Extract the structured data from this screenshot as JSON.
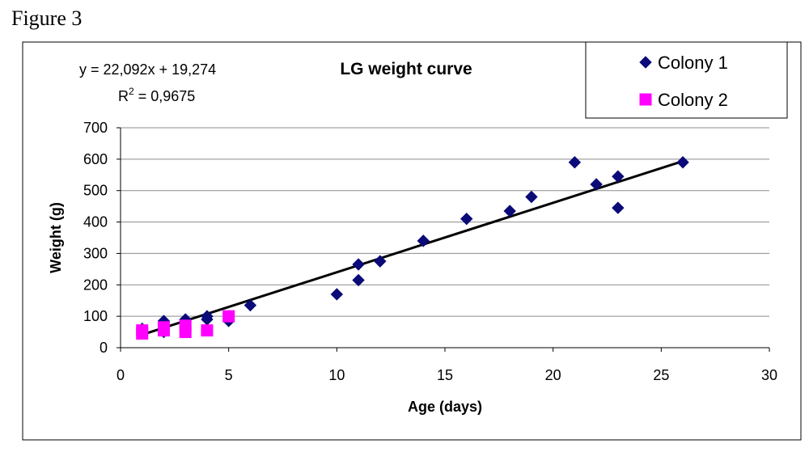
{
  "figure_label": "Figure 3",
  "chart_data": {
    "type": "scatter",
    "title": "LG weight curve",
    "xlabel": "Age (days)",
    "ylabel": "Weight (g)",
    "xlim": [
      0,
      30
    ],
    "ylim": [
      0,
      700
    ],
    "x_ticks": [
      0,
      5,
      10,
      15,
      20,
      25,
      30
    ],
    "y_ticks": [
      0,
      100,
      200,
      300,
      400,
      500,
      600,
      700
    ],
    "grid": "horizontal",
    "legend_position": "top-right",
    "series": [
      {
        "name": "Colony 1",
        "marker": "diamond",
        "color": "#0a0a78",
        "points": [
          [
            1,
            60
          ],
          [
            2,
            85
          ],
          [
            2,
            50
          ],
          [
            3,
            90
          ],
          [
            4,
            100
          ],
          [
            4,
            90
          ],
          [
            5,
            85
          ],
          [
            6,
            135
          ],
          [
            10,
            170
          ],
          [
            11,
            265
          ],
          [
            11,
            215
          ],
          [
            12,
            275
          ],
          [
            14,
            340
          ],
          [
            16,
            410
          ],
          [
            18,
            435
          ],
          [
            19,
            480
          ],
          [
            21,
            590
          ],
          [
            22,
            520
          ],
          [
            23,
            545
          ],
          [
            23,
            445
          ],
          [
            26,
            590
          ]
        ]
      },
      {
        "name": "Colony 2",
        "marker": "square",
        "color": "#ff00ff",
        "points": [
          [
            1,
            55
          ],
          [
            1,
            45
          ],
          [
            2,
            65
          ],
          [
            2,
            55
          ],
          [
            3,
            70
          ],
          [
            3,
            50
          ],
          [
            4,
            55
          ],
          [
            5,
            100
          ]
        ]
      }
    ],
    "trendline": {
      "color": "#000000",
      "slope": 22.092,
      "intercept": 19.274,
      "x_range": [
        1,
        26
      ],
      "equation": "y = 22,092x + 19,274",
      "r2_label": "R",
      "r2_exponent": "2",
      "r2_value": " = 0,9675"
    }
  }
}
